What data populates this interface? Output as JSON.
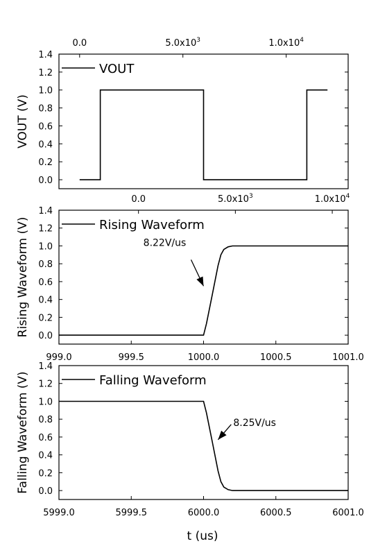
{
  "chart_data": [
    {
      "type": "line",
      "ylabel": "VOUT (V)",
      "legend": "VOUT",
      "legend_position": "top-left",
      "xlim": [
        -1000,
        13000
      ],
      "ylim": [
        -0.1,
        1.4
      ],
      "xticks_top": [
        0,
        5000,
        10000
      ],
      "xtick_labels_top": [
        {
          "m": "0.0",
          "e": ""
        },
        {
          "m": "5.0x10",
          "e": "3"
        },
        {
          "m": "1.0x10",
          "e": "4"
        }
      ],
      "yticks": [
        0.0,
        0.2,
        0.4,
        0.6,
        0.8,
        1.0,
        1.2,
        1.4
      ],
      "ytick_labels": [
        "0.0",
        "0.2",
        "0.4",
        "0.6",
        "0.8",
        "1.0",
        "1.2",
        "1.4"
      ],
      "x": [
        0,
        1000,
        1000,
        6000,
        6000,
        11000,
        11000,
        12000
      ],
      "y": [
        0,
        0,
        1,
        1,
        0,
        0,
        1,
        1
      ]
    },
    {
      "type": "line",
      "ylabel": "Rising Waveform (V)",
      "legend": "Rising Waveform",
      "legend_position": "top-left",
      "xlim": [
        999.0,
        1001.0
      ],
      "ylim": [
        -0.1,
        1.4
      ],
      "xticks_top": [
        999.55,
        1000.22,
        1000.89
      ],
      "xtick_labels_top": [
        {
          "m": "0.0",
          "e": ""
        },
        {
          "m": "5.0x10",
          "e": "3"
        },
        {
          "m": "1.0x10",
          "e": "4"
        }
      ],
      "xticks": [
        999.0,
        999.5,
        1000.0,
        1000.5,
        1001.0
      ],
      "xtick_labels": [
        "999.0",
        "999.5",
        "1000.0",
        "1000.5",
        "1001.0"
      ],
      "yticks": [
        0.0,
        0.2,
        0.4,
        0.6,
        0.8,
        1.0,
        1.2,
        1.4
      ],
      "ytick_labels": [
        "0.0",
        "0.2",
        "0.4",
        "0.6",
        "0.8",
        "1.0",
        "1.2",
        "1.4"
      ],
      "x": [
        999.0,
        1000.0,
        1000.02,
        1000.06,
        1000.1,
        1000.12,
        1000.14,
        1000.17,
        1000.2,
        1001.0
      ],
      "y": [
        0,
        0,
        0.13,
        0.45,
        0.78,
        0.9,
        0.96,
        0.99,
        1.0,
        1.0
      ],
      "annotation": {
        "text": "8.22V/us",
        "x": 1000.0,
        "y": 0.55
      }
    },
    {
      "type": "line",
      "ylabel": "Falling Waveform (V)",
      "legend": "Falling Waveform",
      "legend_position": "top-left",
      "xlim": [
        5999.0,
        6001.0
      ],
      "ylim": [
        -0.1,
        1.4
      ],
      "xticks": [
        5999.0,
        5999.5,
        6000.0,
        6000.5,
        6001.0
      ],
      "xtick_labels": [
        "5999.0",
        "5999.5",
        "6000.0",
        "6000.5",
        "6001.0"
      ],
      "yticks": [
        0.0,
        0.2,
        0.4,
        0.6,
        0.8,
        1.0,
        1.2,
        1.4
      ],
      "ytick_labels": [
        "0.0",
        "0.2",
        "0.4",
        "0.6",
        "0.8",
        "1.0",
        "1.2",
        "1.4"
      ],
      "x": [
        5999.0,
        6000.0,
        6000.02,
        6000.06,
        6000.1,
        6000.12,
        6000.14,
        6000.17,
        6000.2,
        6001.0
      ],
      "y": [
        1.0,
        1.0,
        0.87,
        0.55,
        0.22,
        0.1,
        0.04,
        0.01,
        0.0,
        0.0
      ],
      "annotation": {
        "text": "8.25V/us",
        "x": 6000.1,
        "y": 0.57
      }
    }
  ],
  "xlabel": "t (us)"
}
